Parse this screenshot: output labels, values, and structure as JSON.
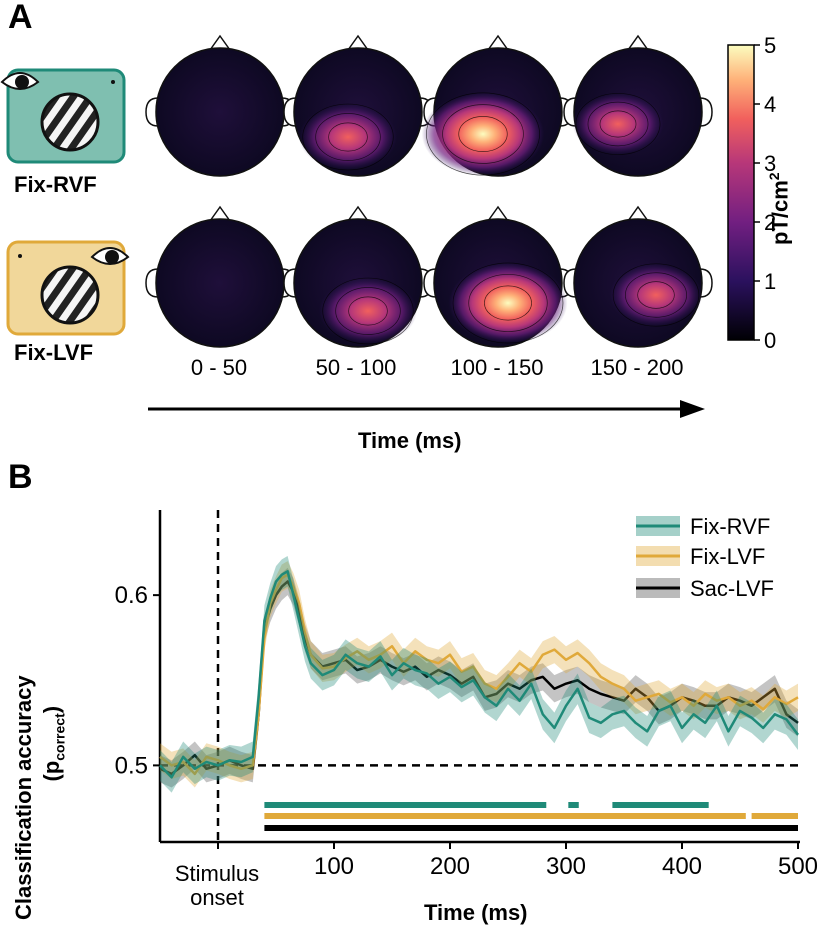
{
  "panel_a": {
    "label": "A",
    "conditions": [
      {
        "name": "Fix-RVF",
        "card_color": "#7fbfb0",
        "card_border": "#1f8a78"
      },
      {
        "name": "Fix-LVF",
        "card_color": "#f1d79a",
        "card_border": "#e0a93a"
      }
    ],
    "time_windows": [
      "0 - 50",
      "50 - 100",
      "100 - 150",
      "150 - 200"
    ],
    "time_axis_label": "Time (ms)",
    "colorbar": {
      "label": "pT/cm",
      "label_sup": "2",
      "ticks": [
        "0",
        "1",
        "2",
        "3",
        "4",
        "5"
      ],
      "min": 0,
      "max": 5
    },
    "topo_peak_strength": {
      "Fix-RVF": [
        0.25,
        3.6,
        5.0,
        3.2
      ],
      "Fix-LVF": [
        0.35,
        3.6,
        4.8,
        3.3
      ]
    }
  },
  "panel_b": {
    "label": "B"
  },
  "chart_data": {
    "type": "line",
    "xlabel": "Time (ms)",
    "ylabel_main": "Classification accuracy",
    "ylabel_sub_prefix": "(p",
    "ylabel_sub": "correct",
    "ylabel_sub_suffix": ")",
    "xlim": [
      -50,
      500
    ],
    "ylim": [
      0.455,
      0.65
    ],
    "xticks": [
      100,
      200,
      300,
      400,
      500
    ],
    "xtick_labels": [
      "100",
      "200",
      "300",
      "400",
      "500"
    ],
    "yticks": [
      0.5,
      0.6
    ],
    "ytick_labels": [
      "0.5",
      "0.6"
    ],
    "stimulus_onset_label_line1": "Stimulus",
    "stimulus_onset_label_line2": "onset",
    "chance_level": 0.5,
    "series": [
      {
        "name": "Fix-RVF",
        "color": "#1f8a78",
        "band": "#1f8a78",
        "x": [
          -50,
          -40,
          -30,
          -20,
          -10,
          0,
          10,
          20,
          30,
          35,
          40,
          45,
          50,
          55,
          60,
          65,
          70,
          75,
          80,
          90,
          100,
          110,
          120,
          130,
          140,
          150,
          160,
          170,
          180,
          190,
          200,
          210,
          220,
          230,
          240,
          250,
          260,
          270,
          280,
          290,
          300,
          310,
          320,
          330,
          340,
          350,
          360,
          370,
          380,
          390,
          400,
          410,
          420,
          430,
          440,
          450,
          460,
          470,
          480,
          490,
          500
        ],
        "values": [
          0.5,
          0.493,
          0.505,
          0.498,
          0.502,
          0.5,
          0.503,
          0.502,
          0.505,
          0.54,
          0.585,
          0.598,
          0.608,
          0.612,
          0.614,
          0.6,
          0.585,
          0.57,
          0.56,
          0.553,
          0.556,
          0.565,
          0.56,
          0.558,
          0.564,
          0.553,
          0.56,
          0.556,
          0.554,
          0.548,
          0.552,
          0.546,
          0.55,
          0.54,
          0.535,
          0.545,
          0.538,
          0.548,
          0.53,
          0.522,
          0.535,
          0.545,
          0.528,
          0.525,
          0.53,
          0.532,
          0.525,
          0.52,
          0.532,
          0.535,
          0.522,
          0.53,
          0.525,
          0.535,
          0.52,
          0.532,
          0.528,
          0.522,
          0.53,
          0.527,
          0.518
        ],
        "band_halfwidth": 0.009
      },
      {
        "name": "Fix-LVF",
        "color": "#e0a93a",
        "band": "#e0a93a",
        "x": [
          -50,
          -40,
          -30,
          -20,
          -10,
          0,
          10,
          20,
          30,
          35,
          40,
          45,
          50,
          55,
          60,
          65,
          70,
          75,
          80,
          90,
          100,
          110,
          120,
          130,
          140,
          150,
          160,
          170,
          180,
          190,
          200,
          210,
          220,
          230,
          240,
          250,
          260,
          270,
          280,
          290,
          300,
          310,
          320,
          330,
          340,
          350,
          360,
          370,
          380,
          390,
          400,
          410,
          420,
          430,
          440,
          450,
          460,
          470,
          480,
          490,
          500
        ],
        "values": [
          0.505,
          0.5,
          0.502,
          0.495,
          0.505,
          0.503,
          0.5,
          0.498,
          0.5,
          0.53,
          0.575,
          0.595,
          0.603,
          0.61,
          0.612,
          0.605,
          0.595,
          0.578,
          0.565,
          0.557,
          0.558,
          0.563,
          0.567,
          0.562,
          0.565,
          0.57,
          0.56,
          0.567,
          0.562,
          0.56,
          0.565,
          0.555,
          0.558,
          0.548,
          0.545,
          0.552,
          0.56,
          0.555,
          0.565,
          0.568,
          0.562,
          0.566,
          0.56,
          0.552,
          0.548,
          0.545,
          0.538,
          0.54,
          0.542,
          0.537,
          0.54,
          0.535,
          0.542,
          0.538,
          0.54,
          0.535,
          0.538,
          0.533,
          0.54,
          0.536,
          0.54
        ],
        "band_halfwidth": 0.008
      },
      {
        "name": "Sac-LVF",
        "color": "#000000",
        "band": "#555555",
        "x": [
          -50,
          -40,
          -30,
          -20,
          -10,
          0,
          10,
          20,
          30,
          35,
          40,
          45,
          50,
          55,
          60,
          65,
          70,
          75,
          80,
          90,
          100,
          110,
          120,
          130,
          140,
          150,
          160,
          170,
          180,
          190,
          200,
          210,
          220,
          230,
          240,
          250,
          260,
          270,
          280,
          290,
          300,
          310,
          320,
          330,
          340,
          350,
          360,
          370,
          380,
          390,
          400,
          410,
          420,
          430,
          440,
          450,
          460,
          470,
          480,
          490,
          500
        ],
        "values": [
          0.498,
          0.495,
          0.5,
          0.506,
          0.498,
          0.5,
          0.503,
          0.5,
          0.498,
          0.53,
          0.58,
          0.592,
          0.6,
          0.605,
          0.608,
          0.602,
          0.59,
          0.575,
          0.565,
          0.558,
          0.56,
          0.562,
          0.556,
          0.558,
          0.562,
          0.558,
          0.555,
          0.558,
          0.552,
          0.556,
          0.553,
          0.548,
          0.552,
          0.54,
          0.542,
          0.548,
          0.545,
          0.55,
          0.552,
          0.545,
          0.548,
          0.55,
          0.545,
          0.542,
          0.54,
          0.538,
          0.545,
          0.54,
          0.532,
          0.535,
          0.54,
          0.538,
          0.535,
          0.535,
          0.54,
          0.538,
          0.535,
          0.54,
          0.545,
          0.53,
          0.525
        ],
        "band_halfwidth": 0.008
      }
    ],
    "significance_bars": [
      {
        "series": "Fix-RVF",
        "color": "#1f8a78",
        "intervals": [
          [
            40,
            283
          ],
          [
            302,
            311
          ],
          [
            340,
            423
          ]
        ]
      },
      {
        "series": "Fix-LVF",
        "color": "#e0a93a",
        "intervals": [
          [
            40,
            455
          ],
          [
            460,
            500
          ]
        ]
      },
      {
        "series": "Sac-LVF",
        "color": "#000000",
        "intervals": [
          [
            40,
            500
          ]
        ]
      }
    ]
  }
}
